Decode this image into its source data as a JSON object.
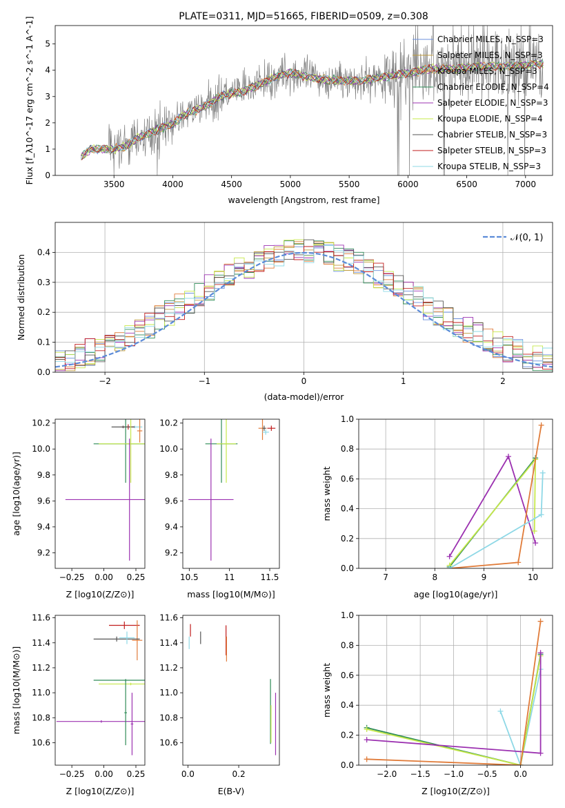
{
  "colors": {
    "Chabrier MILES": "#6a8fdc",
    "Salpeter MILES": "#bf9a3a",
    "Kroupa MILES": "#e07b39",
    "Chabrier ELODIE": "#2e8b57",
    "Salpeter ELODIE": "#9b30b0",
    "Kroupa ELODIE": "#c6e84a",
    "Chabrier STELIB": "#555555",
    "Salpeter STELIB": "#c01c1c",
    "Kroupa STELIB": "#8ed8e6",
    "spectrum": "#808080",
    "gauss": "#5b8bd8"
  },
  "chart_data": [
    {
      "type": "line",
      "title": "PLATE=0311, MJD=51665, FIBERID=0509, z=0.308",
      "xlabel": "wavelength [Angstrom, rest frame]",
      "ylabel": "Flux [f_λ10^-17 erg cm^-2 s^-1 A^-1]",
      "xlim": [
        3000,
        7230
      ],
      "ylim": [
        0,
        5.7
      ],
      "xticks": [
        3500,
        4000,
        4500,
        5000,
        5500,
        6000,
        6500,
        7000
      ],
      "yticks": [
        0,
        1,
        2,
        3,
        4,
        5
      ],
      "x_anchor": [
        3220,
        3300,
        3400,
        3500,
        3600,
        3700,
        3800,
        3900,
        4000,
        4100,
        4200,
        4300,
        4400,
        4500,
        4600,
        4700,
        4800,
        4900,
        5000,
        5200,
        5400,
        5600,
        5800,
        6000,
        6200,
        6400,
        6600,
        6800,
        7000,
        7100
      ],
      "y_anchor": [
        0.7,
        1.0,
        1.0,
        1.0,
        1.1,
        1.4,
        1.6,
        1.8,
        1.95,
        2.3,
        2.5,
        2.7,
        3.0,
        3.1,
        3.2,
        3.4,
        3.6,
        3.8,
        3.9,
        3.7,
        3.6,
        3.6,
        3.75,
        3.9,
        4.05,
        4.05,
        4.15,
        4.15,
        4.2,
        4.25
      ],
      "legend": [
        "Chabrier MILES, N_SSP=3",
        "Salpeter MILES, N_SSP=3",
        "Kroupa MILES, N_SSP=3",
        "Chabrier ELODIE, N_SSP=4",
        "Salpeter ELODIE, N_SSP=3",
        "Kroupa ELODIE, N_SSP=4",
        "Chabrier STELIB, N_SSP=3",
        "Salpeter STELIB, N_SSP=3",
        "Kroupa STELIB, N_SSP=3"
      ],
      "legend_position": "upper right",
      "grid": false
    },
    {
      "type": "histogram",
      "xlabel": "(data-model)/error",
      "ylabel": "Normed distribution",
      "xlim": [
        -2.5,
        2.5
      ],
      "ylim": [
        0,
        0.5
      ],
      "xticks": [
        -2,
        -1,
        0,
        1,
        2
      ],
      "yticks": [
        0.0,
        0.1,
        0.2,
        0.3,
        0.4
      ],
      "bin_width": 0.1,
      "legend": [
        "𝒩(0, 1)"
      ],
      "legend_position": "upper right",
      "grid": true
    },
    {
      "type": "scatter",
      "xlabel": "Z [log10(Z/Z⊙)]",
      "ylabel": "age [log10(age/yr)]",
      "xlim": [
        -0.38,
        0.32
      ],
      "ylim": [
        9.08,
        10.23
      ],
      "xticks": [
        -0.25,
        0.0,
        0.25
      ],
      "xtick_labels": [
        "−0.25",
        "0.00",
        "0.25"
      ],
      "yticks": [
        9.2,
        9.4,
        9.6,
        9.8,
        10.0,
        10.2
      ],
      "points": [
        {
          "series": "Kroupa STELIB",
          "x": 0.24,
          "y": 10.17,
          "xerr": 0.06,
          "yerr": 0.01
        },
        {
          "series": "Salpeter STELIB",
          "x": 0.19,
          "y": 10.17,
          "xerr": 0.05,
          "yerr": 0.02
        },
        {
          "series": "Kroupa MILES",
          "x": 0.28,
          "y": 10.14,
          "xerr": 0.02,
          "yerr": 0.09
        },
        {
          "series": "Chabrier STELIB",
          "x": 0.15,
          "y": 10.17,
          "xerr": 0.09,
          "yerr": 0.01
        },
        {
          "series": "Chabrier ELODIE",
          "x": 0.17,
          "y": 10.04,
          "xerr": 0.25,
          "yerr": 0.3
        },
        {
          "series": "Kroupa ELODIE",
          "x": 0.21,
          "y": 10.04,
          "xerr": 0.25,
          "yerr": 0.3
        },
        {
          "series": "Salpeter ELODIE",
          "x": 0.2,
          "y": 9.61,
          "xerr": 0.5,
          "yerr": 0.47
        }
      ]
    },
    {
      "type": "scatter",
      "xlabel": "mass [log10(M/M⊙)]",
      "ylabel": "",
      "xlim": [
        10.42,
        11.62
      ],
      "ylim": [
        9.08,
        10.23
      ],
      "xticks": [
        10.5,
        11.0,
        11.5
      ],
      "yticks": [
        9.2,
        9.4,
        9.6,
        9.8,
        10.0,
        10.2
      ],
      "points": [
        {
          "series": "Salpeter STELIB",
          "x": 11.52,
          "y": 10.16,
          "xerr": 0.05,
          "yerr": 0.02
        },
        {
          "series": "Kroupa MILES",
          "x": 11.41,
          "y": 10.16,
          "xerr": 0.05,
          "yerr": 0.09
        },
        {
          "series": "Chabrier STELIB",
          "x": 11.43,
          "y": 10.16,
          "xerr": 0.02,
          "yerr": 0.02
        },
        {
          "series": "Kroupa STELIB",
          "x": 11.45,
          "y": 10.13,
          "xerr": 0.04,
          "yerr": 0.02
        },
        {
          "series": "Chabrier ELODIE",
          "x": 10.9,
          "y": 10.04,
          "xerr": 0.2,
          "yerr": 0.3
        },
        {
          "series": "Kroupa ELODIE",
          "x": 10.96,
          "y": 10.04,
          "xerr": 0.12,
          "yerr": 0.3
        },
        {
          "series": "Salpeter ELODIE",
          "x": 10.77,
          "y": 9.61,
          "xerr": 0.28,
          "yerr": 0.47
        }
      ]
    },
    {
      "type": "line",
      "xlabel": "age [log10(age/yr)]",
      "ylabel": "mass weight",
      "xlim": [
        6.45,
        10.4
      ],
      "ylim": [
        0,
        1
      ],
      "xticks": [
        7,
        8,
        9,
        10
      ],
      "yticks": [
        0.0,
        0.2,
        0.4,
        0.6,
        0.8,
        1.0
      ],
      "grid": true,
      "series": [
        {
          "name": "Salpeter ELODIE",
          "x": [
            8.3,
            9.5,
            10.05
          ],
          "y": [
            0.08,
            0.75,
            0.17
          ]
        },
        {
          "name": "Chabrier ELODIE",
          "x": [
            8.3,
            10.05
          ],
          "y": [
            0.01,
            0.74
          ]
        },
        {
          "name": "Kroupa ELODIE",
          "x": [
            8.3,
            10.05,
            10.03
          ],
          "y": [
            0.02,
            0.73,
            0.25
          ]
        },
        {
          "name": "Kroupa MILES",
          "x": [
            8.3,
            9.7,
            10.17
          ],
          "y": [
            0.0,
            0.04,
            0.96
          ]
        },
        {
          "name": "Kroupa STELIB",
          "x": [
            8.3,
            10.17,
            10.2
          ],
          "y": [
            0.0,
            0.36,
            0.64
          ]
        }
      ]
    },
    {
      "type": "scatter",
      "xlabel": "Z [log10(Z/Z⊙)]",
      "ylabel": "mass [log10(M/M⊙)]",
      "xlim": [
        -0.38,
        0.32
      ],
      "ylim": [
        10.42,
        11.62
      ],
      "xticks": [
        -0.25,
        0.0,
        0.25
      ],
      "xtick_labels": [
        "−0.25",
        "0.00",
        "0.25"
      ],
      "yticks": [
        10.6,
        10.8,
        11.0,
        11.2,
        11.4,
        11.6
      ],
      "points": [
        {
          "series": "Salpeter STELIB",
          "x": 0.16,
          "y": 11.54,
          "xerr": 0.12,
          "yerr": 0.03
        },
        {
          "series": "Kroupa MILES",
          "x": 0.26,
          "y": 11.42,
          "xerr": 0.04,
          "yerr": 0.16
        },
        {
          "series": "Chabrier STELIB",
          "x": 0.1,
          "y": 11.43,
          "xerr": 0.18,
          "yerr": 0.02
        },
        {
          "series": "Kroupa STELIB",
          "x": 0.18,
          "y": 11.44,
          "xerr": 0.06,
          "yerr": 0.05
        },
        {
          "series": "Chabrier ELODIE",
          "x": 0.17,
          "y": 11.1,
          "xerr": 0.25,
          "yerr": 0.01
        },
        {
          "series": "Kroupa ELODIE",
          "x": 0.21,
          "y": 11.07,
          "xerr": 0.25,
          "yerr": 0.01
        },
        {
          "series": "Salpeter ELODIE",
          "x": -0.02,
          "y": 10.77,
          "xerr": 0.35,
          "yerr": 0.01
        },
        {
          "series": "Chabrier ELODIE",
          "x": 0.17,
          "y": 10.84,
          "xerr": 0.01,
          "yerr": 0.26
        },
        {
          "series": "Salpeter ELODIE",
          "x": 0.22,
          "y": 10.75,
          "xerr": 0.01,
          "yerr": 0.25
        }
      ]
    },
    {
      "type": "scatter",
      "xlabel": "E(B-V)",
      "ylabel": "",
      "xlim": [
        -0.02,
        0.36
      ],
      "ylim": [
        10.42,
        11.62
      ],
      "xticks": [
        0.0,
        0.2
      ],
      "xtick_labels": [
        "0.0",
        "0.2"
      ],
      "yticks": [
        10.6,
        10.8,
        11.0,
        11.2,
        11.4,
        11.6
      ],
      "points": [
        {
          "series": "Salpeter STELIB",
          "x": 0.01,
          "y": 11.5,
          "xerr": 0,
          "yerr": 0.05
        },
        {
          "series": "Kroupa STELIB",
          "x": 0.005,
          "y": 11.4,
          "xerr": 0,
          "yerr": 0.05
        },
        {
          "series": "Chabrier STELIB",
          "x": 0.05,
          "y": 11.44,
          "xerr": 0,
          "yerr": 0.05
        },
        {
          "series": "Salpeter STELIB",
          "x": 0.15,
          "y": 11.42,
          "xerr": 0,
          "yerr": 0.12
        },
        {
          "series": "Kroupa MILES",
          "x": 0.152,
          "y": 11.35,
          "xerr": 0,
          "yerr": 0.1
        },
        {
          "series": "Chabrier ELODIE",
          "x": 0.325,
          "y": 10.85,
          "xerr": 0,
          "yerr": 0.26
        },
        {
          "series": "Kroupa ELODIE",
          "x": 0.327,
          "y": 10.75,
          "xerr": 0,
          "yerr": 0.15
        },
        {
          "series": "Salpeter ELODIE",
          "x": 0.345,
          "y": 10.75,
          "xerr": 0,
          "yerr": 0.25
        }
      ]
    },
    {
      "type": "line",
      "xlabel": "Z [log10(Z/Z⊙)]",
      "ylabel": "mass weight",
      "xlim": [
        -2.42,
        0.48
      ],
      "ylim": [
        0,
        1
      ],
      "xticks": [
        -2.0,
        -1.5,
        -1.0,
        -0.5,
        0.0
      ],
      "xtick_labels": [
        "−2.0",
        "−1.5",
        "−1.0",
        "−0.5",
        "0.0"
      ],
      "yticks": [
        0.0,
        0.2,
        0.4,
        0.6,
        0.8,
        1.0
      ],
      "grid": true,
      "series": [
        {
          "name": "Kroupa STELIB",
          "x": [
            -0.3,
            0.0,
            0.3
          ],
          "y": [
            0.36,
            0.0,
            0.64
          ]
        },
        {
          "name": "Chabrier ELODIE",
          "x": [
            -2.3,
            0.0,
            0.3
          ],
          "y": [
            0.25,
            0.0,
            0.74
          ]
        },
        {
          "name": "Kroupa ELODIE",
          "x": [
            -2.3,
            0.0,
            0.3
          ],
          "y": [
            0.24,
            0.0,
            0.73
          ]
        },
        {
          "name": "Salpeter ELODIE",
          "x": [
            -2.3,
            0.3,
            0.3
          ],
          "y": [
            0.17,
            0.08,
            0.75
          ]
        },
        {
          "name": "Kroupa MILES",
          "x": [
            -2.3,
            0.0,
            0.3
          ],
          "y": [
            0.04,
            0.0,
            0.96
          ]
        }
      ]
    }
  ]
}
